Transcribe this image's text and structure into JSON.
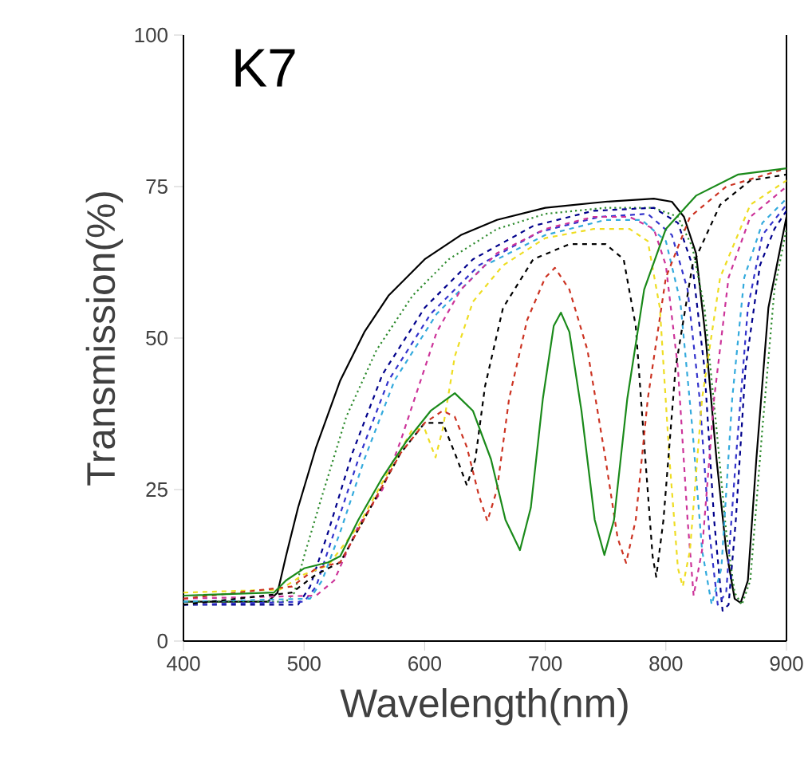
{
  "chart_data": {
    "type": "line",
    "title": "K7",
    "xlabel": "Wavelength(nm)",
    "ylabel": "Transmission(%)",
    "xlim": [
      400,
      900
    ],
    "xticks": [
      400,
      500,
      600,
      700,
      800,
      900
    ],
    "ylim": [
      0,
      100
    ],
    "yticks": [
      0,
      25,
      50,
      75,
      100
    ],
    "grid": false,
    "marker": "none",
    "series": [
      {
        "color": "#000000",
        "line_style": "solid",
        "x": [
          400,
          470,
          478,
          485,
          495,
          510,
          530,
          550,
          570,
          600,
          630,
          660,
          700,
          750,
          790,
          805,
          815,
          825,
          833,
          842,
          850,
          857,
          862,
          868,
          875,
          885,
          900
        ],
        "values": [
          6.5,
          6.5,
          8,
          14,
          22,
          32,
          43,
          51,
          57,
          63,
          67,
          69.5,
          71.5,
          72.5,
          73,
          72.5,
          70,
          64,
          50,
          30,
          15,
          7,
          6.3,
          10,
          30,
          55,
          70
        ]
      },
      {
        "color": "#2e8b2e",
        "line_style": "dotted",
        "x": [
          400,
          485,
          492,
          500,
          515,
          535,
          560,
          590,
          620,
          660,
          700,
          750,
          790,
          810,
          822,
          832,
          842,
          850,
          857,
          863,
          870,
          880,
          890,
          900
        ],
        "values": [
          6.5,
          6.5,
          8,
          14,
          24,
          37,
          48,
          57,
          63,
          68,
          70.5,
          71.5,
          71.5,
          70,
          65,
          55,
          35,
          18,
          8,
          6,
          10,
          35,
          58,
          68
        ]
      },
      {
        "color": "#00008b",
        "line_style": "dashed",
        "x": [
          400,
          495,
          505,
          520,
          540,
          565,
          600,
          640,
          690,
          740,
          790,
          810,
          822,
          832,
          840,
          847,
          852,
          858,
          866,
          878,
          890,
          900
        ],
        "values": [
          6,
          6,
          9,
          18,
          31,
          44,
          55,
          63,
          68.5,
          71,
          71.5,
          69,
          62,
          45,
          20,
          5,
          6,
          20,
          45,
          62,
          68,
          71
        ]
      },
      {
        "color": "#3333cc",
        "line_style": "dashed",
        "x": [
          400,
          500,
          510,
          525,
          545,
          570,
          605,
          645,
          695,
          745,
          785,
          805,
          818,
          828,
          836,
          843,
          850,
          858,
          868,
          880,
          900
        ],
        "values": [
          6,
          6.5,
          9,
          18,
          30,
          43,
          54,
          62,
          67.5,
          70,
          70.5,
          67,
          58,
          40,
          18,
          6,
          8,
          30,
          55,
          67,
          72
        ]
      },
      {
        "color": "#33aadd",
        "line_style": "dashed",
        "x": [
          400,
          505,
          515,
          530,
          550,
          575,
          610,
          650,
          700,
          750,
          780,
          800,
          812,
          822,
          830,
          838,
          846,
          855,
          865,
          880,
          900
        ],
        "values": [
          6.5,
          7,
          10,
          18,
          30,
          43,
          54,
          62,
          67,
          69.5,
          69.5,
          66,
          56,
          35,
          15,
          6,
          12,
          40,
          60,
          69,
          73
        ]
      },
      {
        "color": "#cc3399",
        "line_style": "dashed",
        "x": [
          400,
          510,
          525,
          545,
          565,
          580,
          595,
          610,
          630,
          660,
          700,
          740,
          770,
          790,
          800,
          810,
          818,
          823,
          830,
          840,
          852,
          870,
          900
        ],
        "values": [
          7,
          7.5,
          10,
          19,
          25,
          33,
          42,
          51,
          58,
          64,
          68,
          70,
          70,
          68,
          62,
          45,
          20,
          7.5,
          15,
          40,
          60,
          70,
          75
        ]
      },
      {
        "color": "#eedd22",
        "line_style": "dashed",
        "x": [
          400,
          480,
          500,
          520,
          545,
          570,
          590,
          600,
          609,
          615,
          625,
          640,
          665,
          700,
          740,
          770,
          785,
          795,
          803,
          810,
          814,
          820,
          830,
          845,
          870,
          900
        ],
        "values": [
          8,
          8.5,
          11,
          12.5,
          19,
          28,
          35,
          35,
          30.3,
          35,
          47,
          56,
          62,
          66.5,
          68,
          68,
          66,
          55,
          30,
          12,
          9,
          15,
          40,
          60,
          72,
          76
        ]
      },
      {
        "color": "#000000",
        "line_style": "dashed",
        "x": [
          400,
          490,
          510,
          530,
          555,
          580,
          600,
          615,
          627,
          635,
          642,
          650,
          665,
          690,
          720,
          750,
          765,
          775,
          783,
          789,
          792,
          798,
          808,
          822,
          845,
          870,
          900
        ],
        "values": [
          6,
          8,
          11,
          13,
          22,
          31,
          36,
          36,
          30,
          25.7,
          30,
          42,
          55,
          63,
          65.5,
          65.5,
          63,
          52,
          30,
          14,
          10.6,
          20,
          45,
          62,
          72,
          76,
          77
        ]
      },
      {
        "color": "#cc3322",
        "line_style": "dashed",
        "x": [
          400,
          490,
          510,
          530,
          555,
          580,
          600,
          615,
          625,
          635,
          645,
          652,
          660,
          670,
          685,
          700,
          708,
          720,
          735,
          750,
          760,
          767,
          775,
          785,
          800,
          820,
          850,
          900
        ],
        "values": [
          7,
          9,
          12,
          13,
          22,
          31,
          36,
          38,
          37,
          32,
          24,
          19.8,
          25,
          40,
          53,
          60,
          61.6,
          58,
          48,
          30,
          17,
          12.9,
          20,
          40,
          60,
          70,
          75,
          78
        ]
      },
      {
        "color": "#1a8a1a",
        "line_style": "solid",
        "x": [
          400,
          475,
          485,
          500,
          520,
          530,
          545,
          565,
          585,
          605,
          625,
          640,
          655,
          667,
          679,
          688,
          698,
          707,
          713,
          720,
          730,
          741,
          749,
          757,
          768,
          782,
          800,
          825,
          860,
          900
        ],
        "values": [
          7.5,
          8,
          10,
          12,
          13,
          14,
          20,
          27,
          33,
          38,
          40.9,
          38,
          30,
          20,
          15,
          22,
          40,
          52,
          54.2,
          51,
          38,
          20,
          14.2,
          20,
          40,
          58,
          68,
          73.5,
          77,
          78
        ]
      }
    ]
  }
}
